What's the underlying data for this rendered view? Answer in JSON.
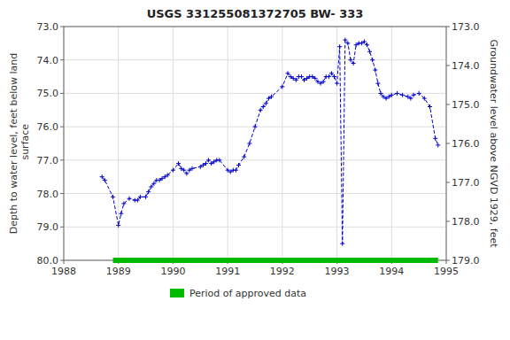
{
  "chart_data": {
    "type": "line",
    "title": "USGS 331255081372705 BW- 333",
    "y_label": "Depth to water level, feet below land\n surface",
    "y2_label": "Groundwater level above NGVD 1929, feet",
    "xlim": [
      1988,
      1995
    ],
    "xticks": [
      1988,
      1989,
      1990,
      1991,
      1992,
      1993,
      1994,
      1995
    ],
    "ylim": [
      80.0,
      73.0
    ],
    "yticks": [
      {
        "value": 73.0,
        "label": "73.0"
      },
      {
        "value": 74.0,
        "label": "74.0"
      },
      {
        "value": 75.0,
        "label": "75.0"
      },
      {
        "value": 76.0,
        "label": "76.0"
      },
      {
        "value": 77.0,
        "label": "77.0"
      },
      {
        "value": 78.0,
        "label": "78.0"
      },
      {
        "value": 79.0,
        "label": "79.0"
      },
      {
        "value": 80.0,
        "label": "80.0"
      }
    ],
    "y2lim": [
      179.0,
      173.0
    ],
    "y2ticks": [
      {
        "value": 179.0,
        "label": "179.0"
      },
      {
        "value": 178.0,
        "label": "178.0"
      },
      {
        "value": 177.0,
        "label": "177.0"
      },
      {
        "value": 176.0,
        "label": "176.0"
      },
      {
        "value": 175.0,
        "label": "175.0"
      },
      {
        "value": 174.0,
        "label": "174.0"
      },
      {
        "value": 173.0,
        "label": "173.0"
      }
    ],
    "grid": true,
    "legend": "bottom",
    "series": [
      {
        "color": "#0000cc",
        "type": "line",
        "line_style": "dashed",
        "marker": "plus",
        "x": [
          1988.7,
          1988.75,
          1988.9,
          1989.0,
          1989.05,
          1989.1,
          1989.2,
          1989.3,
          1989.35,
          1989.4,
          1989.5,
          1989.55,
          1989.6,
          1989.65,
          1989.7,
          1989.75,
          1989.8,
          1989.85,
          1989.9,
          1990.0,
          1990.1,
          1990.15,
          1990.2,
          1990.25,
          1990.3,
          1990.35,
          1990.5,
          1990.55,
          1990.6,
          1990.65,
          1990.7,
          1990.75,
          1990.8,
          1990.85,
          1991.0,
          1991.05,
          1991.1,
          1991.15,
          1991.2,
          1991.3,
          1991.4,
          1991.5,
          1991.6,
          1991.65,
          1991.7,
          1991.75,
          1991.8,
          1992.0,
          1992.1,
          1992.15,
          1992.2,
          1992.25,
          1992.3,
          1992.35,
          1992.4,
          1992.45,
          1992.5,
          1992.55,
          1992.6,
          1992.65,
          1992.7,
          1992.75,
          1992.8,
          1992.85,
          1992.9,
          1992.95,
          1993.0,
          1993.05,
          1993.1,
          1993.15,
          1993.2,
          1993.25,
          1993.3,
          1993.35,
          1993.4,
          1993.45,
          1993.5,
          1993.55,
          1993.6,
          1993.65,
          1993.7,
          1993.75,
          1993.8,
          1993.85,
          1993.9,
          1993.95,
          1994.0,
          1994.1,
          1994.2,
          1994.3,
          1994.35,
          1994.4,
          1994.5,
          1994.6,
          1994.7,
          1994.8,
          1994.85
        ],
        "values": [
          77.5,
          77.6,
          78.1,
          78.95,
          78.6,
          78.3,
          78.15,
          78.2,
          78.2,
          78.1,
          78.1,
          77.95,
          77.8,
          77.7,
          77.6,
          77.6,
          77.55,
          77.5,
          77.45,
          77.3,
          77.1,
          77.25,
          77.3,
          77.4,
          77.3,
          77.25,
          77.2,
          77.15,
          77.1,
          77.0,
          77.1,
          77.05,
          77.0,
          77.0,
          77.3,
          77.35,
          77.3,
          77.3,
          77.15,
          76.9,
          76.5,
          76.0,
          75.5,
          75.4,
          75.3,
          75.15,
          75.1,
          74.8,
          74.4,
          74.5,
          74.55,
          74.6,
          74.5,
          74.5,
          74.6,
          74.55,
          74.5,
          74.5,
          74.55,
          74.65,
          74.7,
          74.65,
          74.5,
          74.5,
          74.4,
          74.5,
          74.7,
          73.6,
          79.5,
          73.4,
          73.5,
          74.0,
          74.1,
          73.55,
          73.5,
          73.5,
          73.45,
          73.55,
          73.75,
          74.0,
          74.3,
          74.7,
          75.0,
          75.1,
          75.15,
          75.1,
          75.05,
          75.0,
          75.05,
          75.1,
          75.15,
          75.05,
          75.0,
          75.15,
          75.4,
          76.35,
          76.55
        ]
      },
      {
        "name": "Period of approved data",
        "color": "#00bb00",
        "type": "line",
        "line_style": "solid",
        "x": [
          1988.9,
          1994.85
        ],
        "values": [
          80.0,
          80.0
        ]
      }
    ]
  }
}
